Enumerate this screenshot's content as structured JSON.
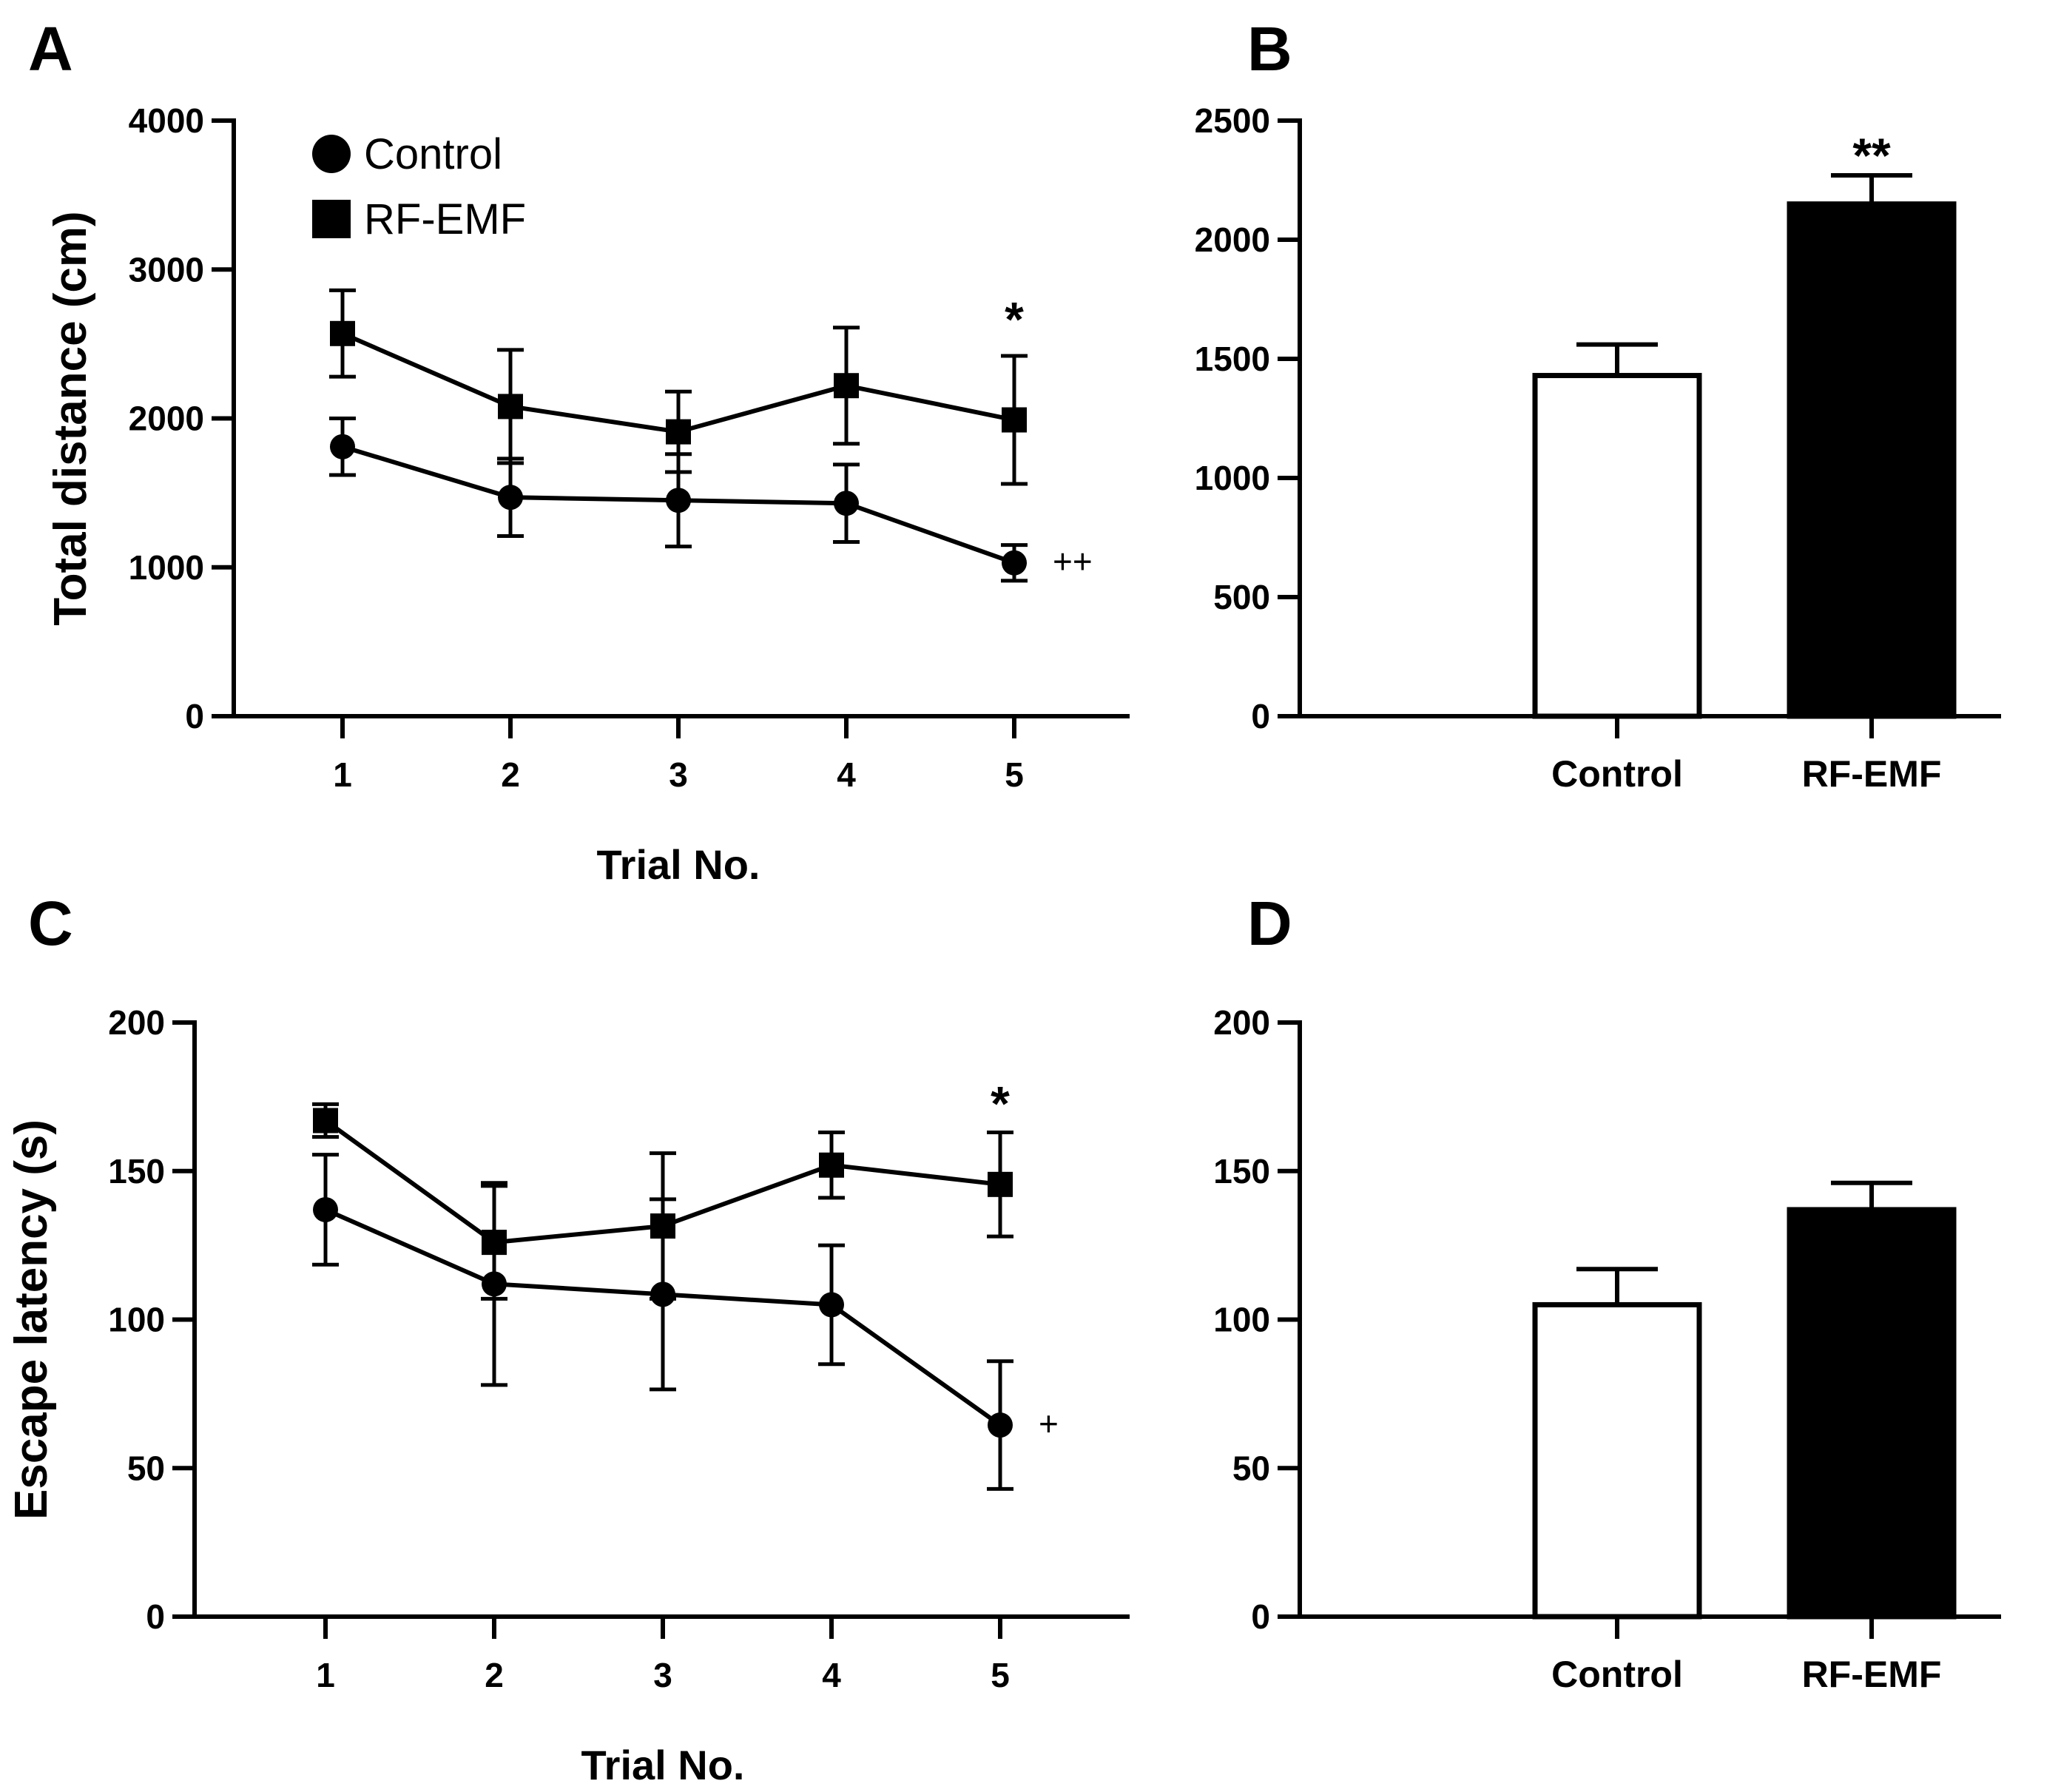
{
  "panels": {
    "A": {
      "letter": "A"
    },
    "B": {
      "letter": "B"
    },
    "C": {
      "letter": "C"
    },
    "D": {
      "letter": "D"
    }
  },
  "colors": {
    "ink": "#000000",
    "control_bar_fill": "#ffffff",
    "rfemf_bar_fill": "#000000"
  },
  "chart_data": [
    {
      "panel": "A",
      "type": "line",
      "xlabel": "Trial No.",
      "ylabel": "Total distance (cm)",
      "x": [
        1,
        2,
        3,
        4,
        5
      ],
      "ylim": [
        0,
        4000
      ],
      "yticks": [
        0,
        1000,
        2000,
        3000,
        4000
      ],
      "legend": {
        "placement": "top-left",
        "entries": [
          {
            "name": "Control",
            "marker": "circle"
          },
          {
            "name": "RF-EMF",
            "marker": "square"
          }
        ]
      },
      "series": [
        {
          "name": "Control",
          "marker": "circle",
          "values": [
            1810,
            1470,
            1450,
            1430,
            1030
          ],
          "errors": [
            190,
            260,
            310,
            260,
            120
          ]
        },
        {
          "name": "RF-EMF",
          "marker": "square",
          "values": [
            2570,
            2080,
            1910,
            2220,
            1990
          ],
          "errors": [
            290,
            380,
            270,
            390,
            430
          ]
        }
      ],
      "annotations": [
        {
          "text": "*",
          "x": 5,
          "y": 2650,
          "anchor": "above-series"
        },
        {
          "text": "++",
          "x": 5,
          "y": 1030,
          "anchor": "right-of-point"
        }
      ]
    },
    {
      "panel": "B",
      "type": "bar",
      "ylabel": "Total distance (cm)",
      "categories": [
        "Control",
        "RF-EMF"
      ],
      "values": [
        1430,
        2150
      ],
      "errors": [
        130,
        120
      ],
      "ylim": [
        0,
        2500
      ],
      "yticks": [
        0,
        500,
        1000,
        1500,
        2000,
        2500
      ],
      "annotations": [
        {
          "text": "**",
          "category": "RF-EMF"
        }
      ]
    },
    {
      "panel": "C",
      "type": "line",
      "xlabel": "Trial No.",
      "ylabel": "Escape latency (s)",
      "x": [
        1,
        2,
        3,
        4,
        5
      ],
      "ylim": [
        0,
        200
      ],
      "yticks": [
        0,
        50,
        100,
        150,
        200
      ],
      "series": [
        {
          "name": "Control",
          "marker": "circle",
          "values": [
            137,
            112,
            108.5,
            105,
            64.5
          ],
          "errors": [
            18.5,
            34,
            32,
            20,
            21.5
          ]
        },
        {
          "name": "RF-EMF",
          "marker": "square",
          "values": [
            167,
            126,
            131.5,
            152,
            145.5
          ],
          "errors": [
            5.5,
            19,
            24.5,
            11,
            17.5
          ]
        }
      ],
      "annotations": [
        {
          "text": "*",
          "x": 5,
          "y": 172,
          "anchor": "above-series"
        },
        {
          "text": "+",
          "x": 5,
          "y": 64.5,
          "anchor": "right-of-point"
        }
      ]
    },
    {
      "panel": "D",
      "type": "bar",
      "ylabel": "Escape latency (s)",
      "categories": [
        "Control",
        "RF-EMF"
      ],
      "values": [
        105,
        137
      ],
      "errors": [
        12,
        9
      ],
      "ylim": [
        0,
        200
      ],
      "yticks": [
        0,
        50,
        100,
        150,
        200
      ]
    }
  ]
}
